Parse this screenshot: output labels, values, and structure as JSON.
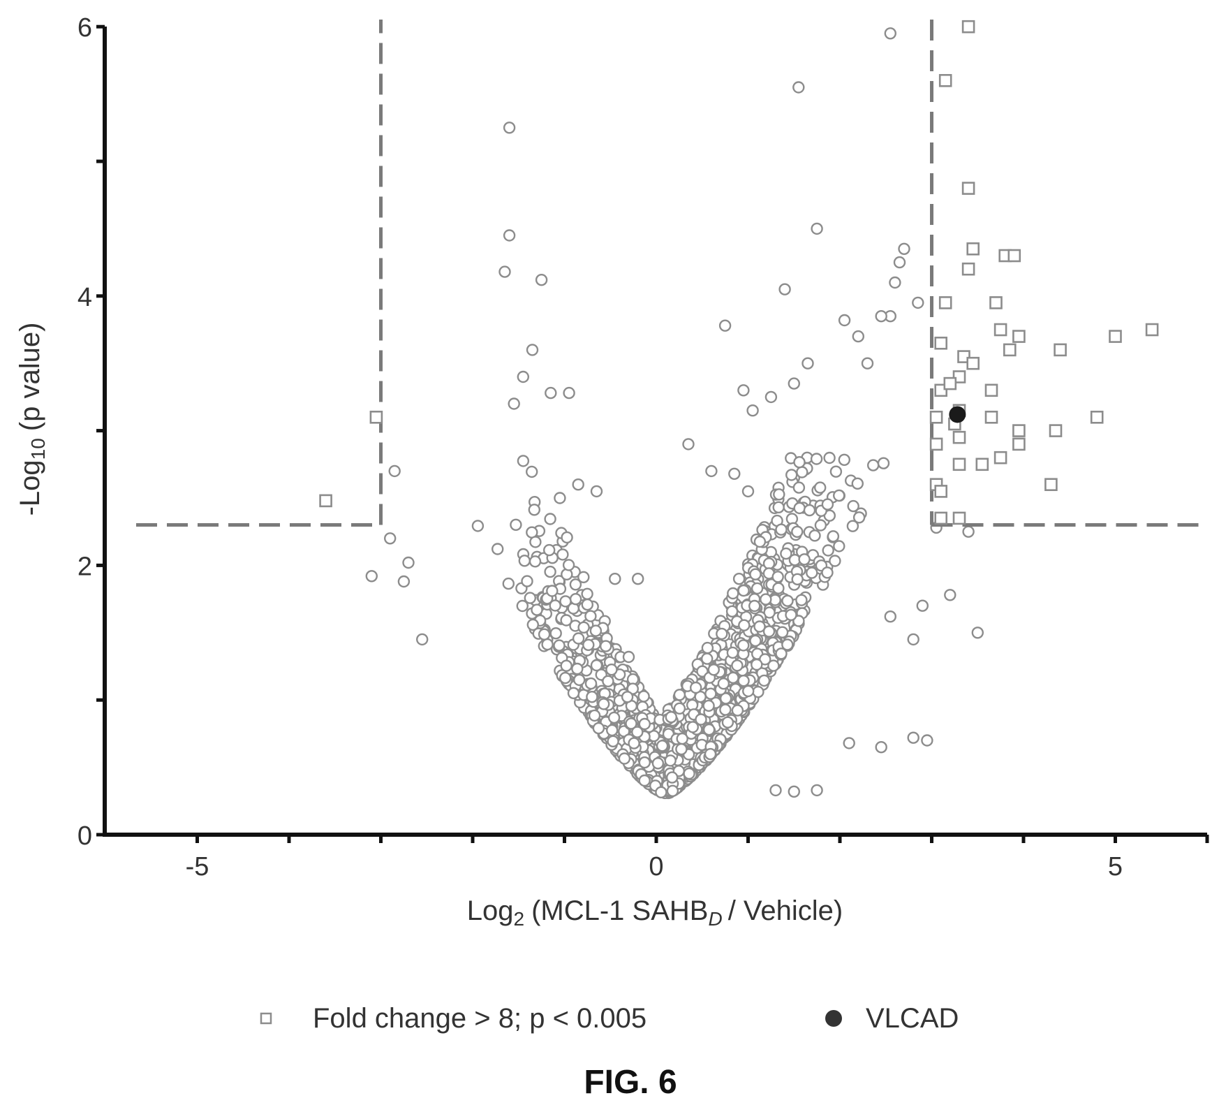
{
  "figure": {
    "caption": "FIG. 6"
  },
  "chart_data": {
    "type": "scatter",
    "title": "",
    "xlabel": {
      "main": "Log",
      "main_sub": "2",
      "paren_text": "(MCL-1 SAHB",
      "paren_sub": "D",
      "tail": "/ Vehicle)"
    },
    "ylabel": {
      "main": "-Log",
      "main_sub": "10",
      "tail": "(p value)"
    },
    "xlim": [
      -6,
      6
    ],
    "ylim": [
      0,
      6
    ],
    "x_ticks": [
      -5,
      -4,
      -3,
      -2,
      -1,
      0,
      1,
      2,
      3,
      4,
      5,
      6
    ],
    "x_tick_labels": [
      "-5",
      "",
      "",
      "",
      "",
      "0",
      "",
      "",
      "",
      "",
      "5",
      ""
    ],
    "y_ticks": [
      0,
      1,
      2,
      3,
      4,
      5,
      6
    ],
    "y_tick_labels": [
      "0",
      "",
      "2",
      "",
      "4",
      "",
      "6"
    ],
    "grid": false,
    "legend_position": "bottom",
    "thresholds": {
      "x_lower": -3,
      "x_upper": 3,
      "y": 2.3
    },
    "legend": [
      {
        "label": "Fold change > 8; p < 0.005",
        "marker": "square"
      },
      {
        "label": "VLCAD",
        "marker": "filled-circle"
      }
    ],
    "colors": {
      "axis": "#111111",
      "points": "#8c8c8c",
      "threshold": "#7a7a7a",
      "highlight": "#1a1a1a"
    },
    "series": [
      {
        "name": "Fold change > 8; p < 0.005",
        "marker": "square",
        "points": [
          [
            -3.6,
            2.48
          ],
          [
            -3.05,
            3.1
          ],
          [
            3.4,
            6.0
          ],
          [
            3.15,
            5.6
          ],
          [
            3.15,
            3.95
          ],
          [
            3.1,
            3.65
          ],
          [
            3.1,
            3.3
          ],
          [
            3.05,
            3.1
          ],
          [
            3.05,
            2.9
          ],
          [
            3.05,
            2.6
          ],
          [
            3.1,
            2.55
          ],
          [
            3.1,
            2.35
          ],
          [
            3.4,
            4.8
          ],
          [
            3.45,
            4.35
          ],
          [
            3.4,
            4.2
          ],
          [
            3.35,
            3.55
          ],
          [
            3.3,
            3.4
          ],
          [
            3.3,
            3.15
          ],
          [
            3.3,
            2.95
          ],
          [
            3.3,
            2.75
          ],
          [
            3.3,
            2.35
          ],
          [
            3.45,
            3.5
          ],
          [
            3.55,
            2.75
          ],
          [
            3.65,
            3.3
          ],
          [
            3.65,
            3.1
          ],
          [
            3.7,
            3.95
          ],
          [
            3.75,
            3.75
          ],
          [
            3.75,
            2.8
          ],
          [
            3.8,
            4.3
          ],
          [
            3.85,
            3.6
          ],
          [
            3.9,
            4.3
          ],
          [
            3.95,
            3.7
          ],
          [
            3.95,
            2.9
          ],
          [
            3.95,
            3.0
          ],
          [
            4.3,
            2.6
          ],
          [
            4.35,
            3.0
          ],
          [
            4.4,
            3.6
          ],
          [
            4.8,
            3.1
          ],
          [
            5.0,
            3.7
          ],
          [
            5.4,
            3.75
          ],
          [
            3.2,
            3.35
          ],
          [
            3.25,
            3.05
          ]
        ]
      },
      {
        "name": "VLCAD",
        "marker": "filled-circle",
        "points": [
          [
            3.28,
            3.12
          ]
        ]
      }
    ],
    "background_points_note": "Remaining points are non-significant proteins plotted as open circles."
  }
}
